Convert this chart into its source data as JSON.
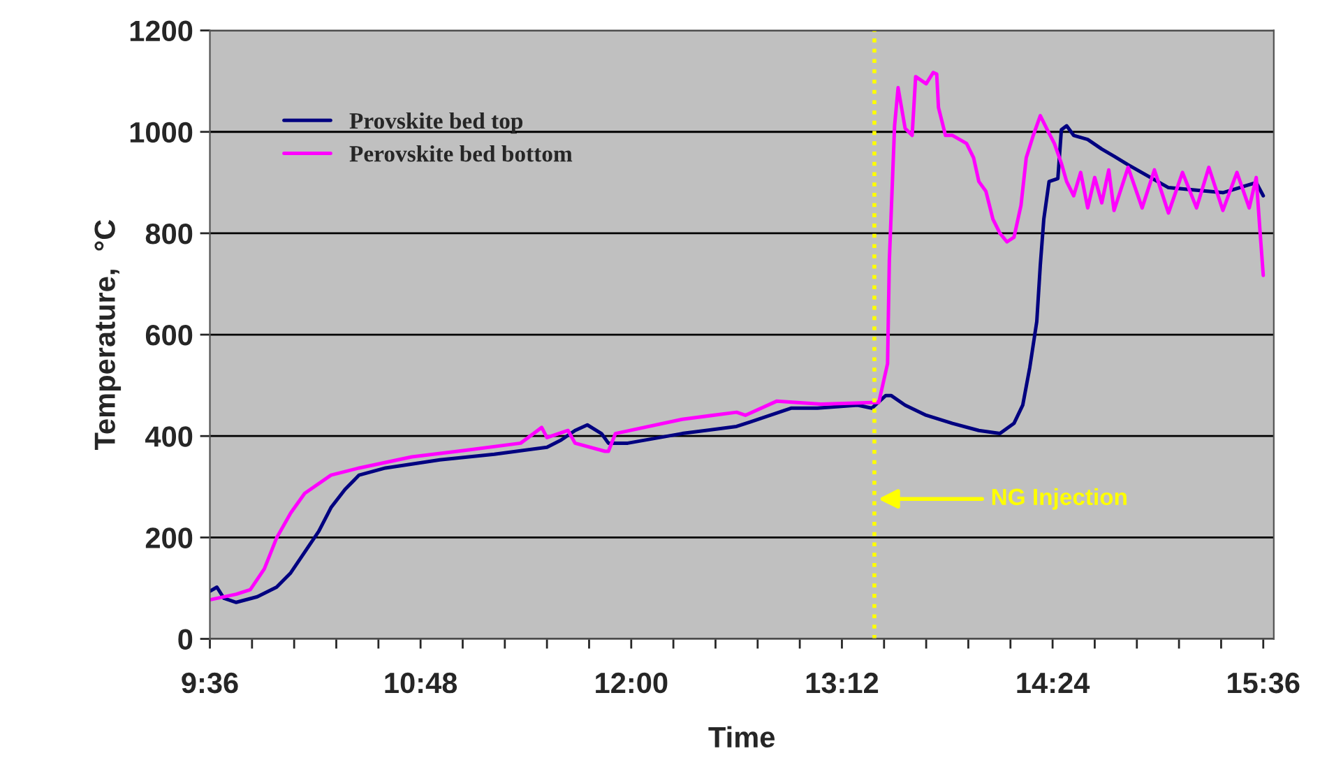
{
  "chart_data": {
    "type": "line",
    "xlabel": "Time",
    "ylabel": "Temperature,  °C",
    "xlim": [
      9.6,
      15.66
    ],
    "ylim": [
      0,
      1200
    ],
    "xticks": [
      {
        "value": 9.6,
        "label": "9:36"
      },
      {
        "value": 9.84,
        "label": null
      },
      {
        "value": 10.08,
        "label": null
      },
      {
        "value": 10.32,
        "label": null
      },
      {
        "value": 10.56,
        "label": null
      },
      {
        "value": 10.8,
        "label": "10:48"
      },
      {
        "value": 11.04,
        "label": null
      },
      {
        "value": 11.28,
        "label": null
      },
      {
        "value": 11.52,
        "label": null
      },
      {
        "value": 11.76,
        "label": null
      },
      {
        "value": 12,
        "label": "12:00"
      },
      {
        "value": 12.24,
        "label": null
      },
      {
        "value": 12.48,
        "label": null
      },
      {
        "value": 12.72,
        "label": null
      },
      {
        "value": 12.96,
        "label": null
      },
      {
        "value": 13.2,
        "label": "13:12"
      },
      {
        "value": 13.44,
        "label": null
      },
      {
        "value": 13.68,
        "label": null
      },
      {
        "value": 13.92,
        "label": null
      },
      {
        "value": 14.16,
        "label": null
      },
      {
        "value": 14.4,
        "label": "14:24"
      },
      {
        "value": 14.64,
        "label": null
      },
      {
        "value": 14.88,
        "label": null
      },
      {
        "value": 15.12,
        "label": null
      },
      {
        "value": 15.36,
        "label": null
      },
      {
        "value": 15.6,
        "label": "15:36"
      }
    ],
    "yticks": [
      0,
      200,
      400,
      600,
      800,
      1000,
      1200
    ],
    "grid": "y",
    "legend": "top left",
    "marker": "none",
    "line_style": "solid",
    "ref_lines": [
      {
        "axis": "x",
        "value": 13.385,
        "color": "#ffff00",
        "line_style": "dotted"
      }
    ],
    "annotations": [
      "NG Injection"
    ],
    "series": [
      {
        "name": "Provskite bed top",
        "color": "#000080",
        "x": [
          9.6,
          9.64,
          9.68,
          9.75,
          9.87,
          9.98,
          10.06,
          10.14,
          10.22,
          10.29,
          10.37,
          10.45,
          10.6,
          10.91,
          11.22,
          11.52,
          11.6,
          11.68,
          11.75,
          11.83,
          11.87,
          11.98,
          12.29,
          12.6,
          12.68,
          12.91,
          13.06,
          13.29,
          13.37,
          13.45,
          13.48,
          13.56,
          13.68,
          13.83,
          13.98,
          14.1,
          14.18,
          14.23,
          14.27,
          14.31,
          14.33,
          14.35,
          14.38,
          14.43,
          14.45,
          14.48,
          14.52,
          14.6,
          14.68,
          14.75,
          14.83,
          15.06,
          15.37,
          15.56,
          15.6
        ],
        "values": [
          94,
          102,
          80,
          72,
          83,
          102,
          130,
          171,
          212,
          259,
          295,
          323,
          337,
          353,
          364,
          378,
          392,
          411,
          422,
          405,
          386,
          386,
          405,
          419,
          428,
          455,
          455,
          461,
          455,
          480,
          480,
          461,
          441,
          425,
          411,
          405,
          425,
          461,
          535,
          626,
          737,
          828,
          902,
          908,
          1004,
          1012,
          993,
          985,
          966,
          952,
          935,
          890,
          880,
          900,
          874
        ]
      },
      {
        "name": "Perovskite bed bottom",
        "color": "#ff00ff",
        "x": [
          9.6,
          9.75,
          9.83,
          9.91,
          9.98,
          10.06,
          10.14,
          10.29,
          10.45,
          10.75,
          11.06,
          11.37,
          11.49,
          11.52,
          11.64,
          11.68,
          11.85,
          11.87,
          11.91,
          12.29,
          12.6,
          12.65,
          12.83,
          13.08,
          13.37,
          13.41,
          13.46,
          13.47,
          13.5,
          13.52,
          13.56,
          13.6,
          13.62,
          13.68,
          13.72,
          13.74,
          13.75,
          13.79,
          13.83,
          13.91,
          13.95,
          13.98,
          14.02,
          14.06,
          14.1,
          14.14,
          14.18,
          14.22,
          14.25,
          14.29,
          14.33,
          14.37,
          14.41,
          14.45,
          14.48,
          14.52,
          14.56,
          14.6,
          14.64,
          14.68,
          14.72,
          14.75,
          14.83,
          14.91,
          14.98,
          15.06,
          15.14,
          15.22,
          15.29,
          15.37,
          15.45,
          15.52,
          15.56,
          15.58,
          15.6
        ],
        "values": [
          77,
          88,
          97,
          138,
          199,
          248,
          287,
          323,
          337,
          359,
          372,
          386,
          417,
          397,
          411,
          386,
          370,
          370,
          405,
          433,
          447,
          441,
          469,
          463,
          466,
          466,
          543,
          745,
          1012,
          1087,
          1007,
          993,
          1109,
          1095,
          1117,
          1114,
          1048,
          993,
          993,
          977,
          949,
          902,
          883,
          828,
          800,
          783,
          792,
          855,
          949,
          993,
          1032,
          1004,
          977,
          938,
          902,
          874,
          920,
          850,
          910,
          860,
          925,
          845,
          930,
          850,
          925,
          840,
          920,
          850,
          930,
          845,
          920,
          850,
          910,
          811,
          717
        ]
      }
    ]
  }
}
